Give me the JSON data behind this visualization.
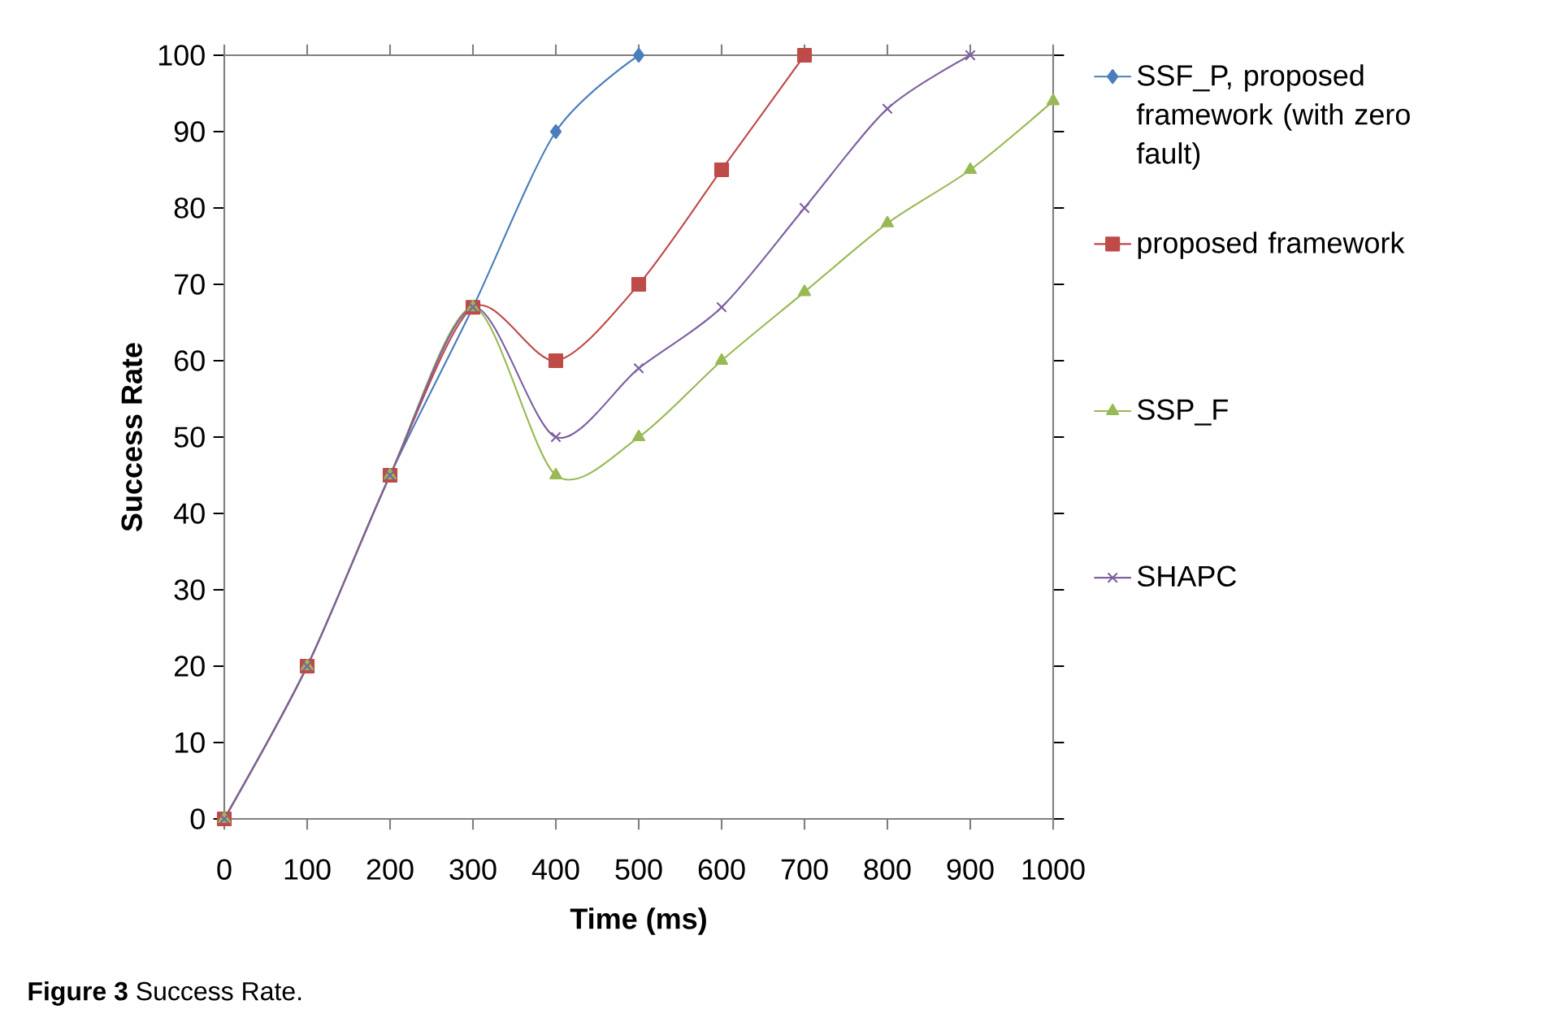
{
  "chart_data": {
    "type": "line",
    "xlabel": "Time (ms)",
    "ylabel": "Success Rate",
    "x": [
      0,
      100,
      200,
      300,
      400,
      500,
      600,
      700,
      800,
      900,
      1000
    ],
    "series": [
      {
        "name": "SSF_P, proposed framework (with zero fault)",
        "color": "#4a7ebb",
        "marker": "diamond",
        "values": [
          0,
          20,
          45,
          67,
          90,
          100,
          null,
          null,
          null,
          null,
          null
        ]
      },
      {
        "name": "proposed framework",
        "color": "#be4b48",
        "marker": "square",
        "values": [
          0,
          20,
          45,
          67,
          60,
          70,
          85,
          100,
          null,
          null,
          null
        ]
      },
      {
        "name": "SSP_F",
        "color": "#98b954",
        "marker": "triangle",
        "values": [
          0,
          20,
          45,
          67,
          45,
          50,
          60,
          69,
          78,
          85,
          94
        ]
      },
      {
        "name": "SHAPC",
        "color": "#7d60a0",
        "marker": "cross",
        "values": [
          0,
          20,
          45,
          67,
          50,
          59,
          67,
          80,
          93,
          100,
          null
        ]
      }
    ],
    "xlim": [
      0,
      1000
    ],
    "xticks": [
      0,
      100,
      200,
      300,
      400,
      500,
      600,
      700,
      800,
      900,
      1000
    ],
    "ylim": [
      0,
      100
    ],
    "yticks": [
      0,
      10,
      20,
      30,
      40,
      50,
      60,
      70,
      80,
      90,
      100
    ],
    "grid": false,
    "legend": "right",
    "line_style": "solid",
    "annotations": [
      "**Figure 3** Success Rate."
    ]
  }
}
